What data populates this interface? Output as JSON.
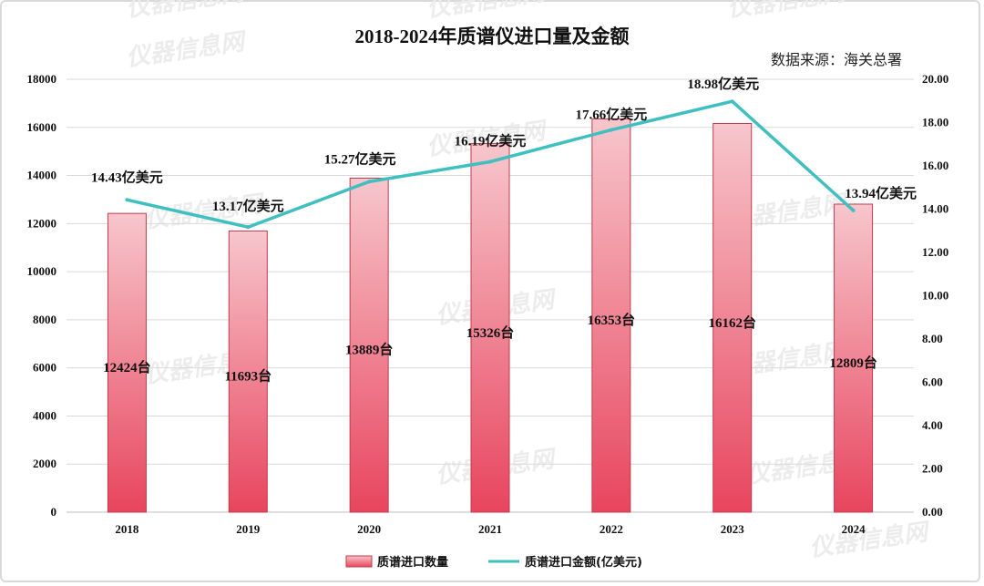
{
  "chart_data": {
    "type": "bar+line",
    "title": "2018-2024年质谱仪进口量及金额",
    "source": "数据来源：海关总署",
    "categories": [
      "2018",
      "2019",
      "2020",
      "2021",
      "2022",
      "2023",
      "2024"
    ],
    "series": [
      {
        "name": "质谱进口数量",
        "type": "bar",
        "axis": "left",
        "values": [
          12424,
          11693,
          13889,
          15326,
          16353,
          16162,
          12809
        ],
        "labels": [
          "12424台",
          "11693台",
          "13889台",
          "15326台",
          "16353台",
          "16162台",
          "12809台"
        ]
      },
      {
        "name": "质谱进口金额(亿美元)",
        "type": "line",
        "axis": "right",
        "values": [
          14.43,
          13.17,
          15.27,
          16.19,
          17.66,
          18.98,
          13.94
        ],
        "labels": [
          "14.43亿美元",
          "13.17亿美元",
          "15.27亿美元",
          "16.19亿美元",
          "17.66亿美元",
          "18.98亿美元",
          "13.94亿美元"
        ]
      }
    ],
    "y_left": {
      "min": 0,
      "max": 18000,
      "ticks": [
        "0",
        "2000",
        "4000",
        "6000",
        "8000",
        "10000",
        "12000",
        "14000",
        "16000",
        "18000"
      ]
    },
    "y_right": {
      "min": 0,
      "max": 20,
      "ticks": [
        "0.00",
        "2.00",
        "4.00",
        "6.00",
        "8.00",
        "10.00",
        "12.00",
        "14.00",
        "16.00",
        "18.00",
        "20.00"
      ]
    },
    "grid": true,
    "legend_position": "bottom",
    "colors": {
      "bar_top": "#f7c6cc",
      "bar_bottom": "#e8455e",
      "bar_border": "#c43a4d",
      "line": "#3fbfbf",
      "grid": "#d9d9d9"
    }
  },
  "watermark": "仪器信息网"
}
